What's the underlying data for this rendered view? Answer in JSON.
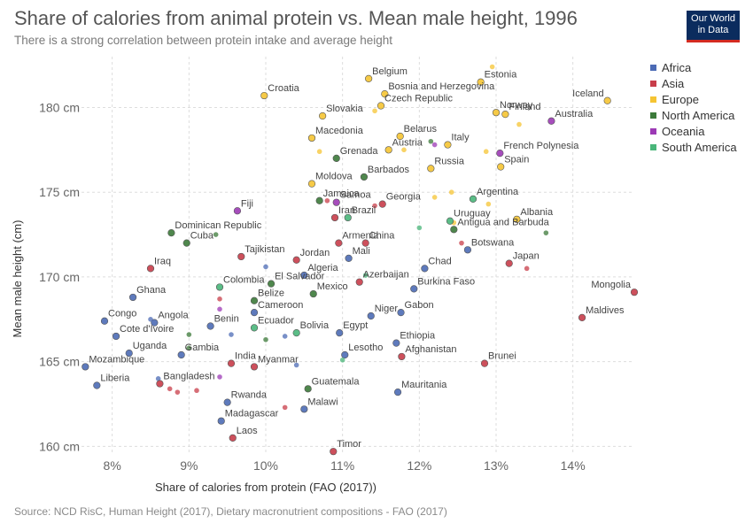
{
  "header": {
    "title": "Share of calories from animal protein vs. Mean male height, 1996",
    "subtitle": "There is a strong correlation between protein intake and average height",
    "logo_line1": "Our World",
    "logo_line2": "in Data"
  },
  "footer": {
    "source": "Source: NCD RisC, Human Height (2017), Dietary macronutrient compositions - FAO (2017)"
  },
  "colors": {
    "Africa": "#4c6bb5",
    "Asia": "#c83d4a",
    "Europe": "#f5c433",
    "North America": "#3c7a3a",
    "Oceania": "#9c3ab5",
    "South America": "#49b67a"
  },
  "chart_data": {
    "type": "scatter",
    "title": "Share of calories from animal protein vs. Mean male height, 1996",
    "xlabel": "Share of calories from protein (FAO (2017))",
    "ylabel": "Mean male height (cm)",
    "xlim": [
      7.6,
      14.8
    ],
    "ylim": [
      159.5,
      183
    ],
    "x_ticks": [
      8,
      9,
      10,
      11,
      12,
      13,
      14
    ],
    "x_tick_labels": [
      "8%",
      "9%",
      "10%",
      "11%",
      "12%",
      "13%",
      "14%"
    ],
    "y_ticks": [
      160,
      165,
      170,
      175,
      180
    ],
    "y_tick_labels": [
      "160 cm",
      "165 cm",
      "170 cm",
      "175 cm",
      "180 cm"
    ],
    "grid": true,
    "legend_position": "right",
    "legend": [
      "Africa",
      "Asia",
      "Europe",
      "North America",
      "Oceania",
      "South America"
    ],
    "series": [
      {
        "name": "Africa",
        "points": [
          {
            "x": 8.27,
            "y": 168.8,
            "label": "Ghana"
          },
          {
            "x": 7.9,
            "y": 167.4,
            "label": "Congo"
          },
          {
            "x": 8.55,
            "y": 167.3,
            "label": "Angola"
          },
          {
            "x": 8.05,
            "y": 166.5,
            "label": "Cote d'Ivoire"
          },
          {
            "x": 8.22,
            "y": 165.5,
            "label": "Uganda"
          },
          {
            "x": 7.65,
            "y": 164.7,
            "label": "Mozambique"
          },
          {
            "x": 7.8,
            "y": 163.6,
            "label": "Liberia"
          },
          {
            "x": 8.9,
            "y": 165.4,
            "label": "Gambia"
          },
          {
            "x": 9.28,
            "y": 167.1,
            "label": "Benin"
          },
          {
            "x": 9.85,
            "y": 167.9,
            "label": "Cameroon"
          },
          {
            "x": 9.5,
            "y": 162.6,
            "label": "Rwanda"
          },
          {
            "x": 9.42,
            "y": 161.5,
            "label": "Madagascar"
          },
          {
            "x": 10.5,
            "y": 162.2,
            "label": "Malawi"
          },
          {
            "x": 10.5,
            "y": 170.1,
            "label": "Algeria"
          },
          {
            "x": 11.08,
            "y": 171.1,
            "label": "Mali"
          },
          {
            "x": 10.96,
            "y": 166.7,
            "label": "Egypt"
          },
          {
            "x": 11.03,
            "y": 165.4,
            "label": "Lesotho"
          },
          {
            "x": 11.37,
            "y": 167.7,
            "label": "Niger"
          },
          {
            "x": 11.76,
            "y": 167.9,
            "label": "Gabon"
          },
          {
            "x": 11.7,
            "y": 166.1,
            "label": "Ethiopia"
          },
          {
            "x": 11.72,
            "y": 163.2,
            "label": "Mauritania"
          },
          {
            "x": 11.93,
            "y": 169.3,
            "label": "Burkina Faso"
          },
          {
            "x": 12.07,
            "y": 170.5,
            "label": "Chad"
          },
          {
            "x": 12.63,
            "y": 171.6,
            "label": "Botswana"
          },
          {
            "x": 8.5,
            "y": 167.5
          },
          {
            "x": 9.55,
            "y": 166.6
          },
          {
            "x": 10.25,
            "y": 166.5
          },
          {
            "x": 10.0,
            "y": 170.6
          },
          {
            "x": 8.6,
            "y": 164.0
          },
          {
            "x": 10.4,
            "y": 164.8
          }
        ]
      },
      {
        "name": "Asia",
        "points": [
          {
            "x": 8.5,
            "y": 170.5,
            "label": "Iraq"
          },
          {
            "x": 9.68,
            "y": 171.2,
            "label": "Tajikistan"
          },
          {
            "x": 10.4,
            "y": 171.0,
            "label": "Jordan"
          },
          {
            "x": 9.55,
            "y": 164.9,
            "label": "India"
          },
          {
            "x": 9.85,
            "y": 164.7,
            "label": "Myanmar"
          },
          {
            "x": 8.62,
            "y": 163.7,
            "label": "Bangladesh"
          },
          {
            "x": 9.57,
            "y": 160.5,
            "label": "Laos"
          },
          {
            "x": 10.88,
            "y": 159.7,
            "label": "Timor"
          },
          {
            "x": 10.9,
            "y": 173.5,
            "label": "Iran"
          },
          {
            "x": 10.95,
            "y": 172.0,
            "label": "Armenia"
          },
          {
            "x": 11.3,
            "y": 172.0,
            "label": "China"
          },
          {
            "x": 11.52,
            "y": 174.3,
            "label": "Georgia"
          },
          {
            "x": 11.22,
            "y": 169.7,
            "label": "Azerbaijan"
          },
          {
            "x": 11.77,
            "y": 165.3,
            "label": "Afghanistan"
          },
          {
            "x": 12.85,
            "y": 164.9,
            "label": "Brunei"
          },
          {
            "x": 13.17,
            "y": 170.8,
            "label": "Japan"
          },
          {
            "x": 14.12,
            "y": 167.6,
            "label": "Maldives"
          },
          {
            "x": 14.8,
            "y": 169.1,
            "label": "Mongolia"
          },
          {
            "x": 9.4,
            "y": 168.7
          },
          {
            "x": 10.8,
            "y": 174.5
          },
          {
            "x": 11.42,
            "y": 174.2
          },
          {
            "x": 12.55,
            "y": 172.0
          },
          {
            "x": 13.4,
            "y": 170.5
          },
          {
            "x": 8.75,
            "y": 163.4
          },
          {
            "x": 8.85,
            "y": 163.2
          },
          {
            "x": 9.1,
            "y": 163.3
          },
          {
            "x": 10.25,
            "y": 162.3
          }
        ]
      },
      {
        "name": "Europe",
        "points": [
          {
            "x": 9.98,
            "y": 180.7,
            "label": "Croatia"
          },
          {
            "x": 10.74,
            "y": 179.5,
            "label": "Slovakia"
          },
          {
            "x": 10.6,
            "y": 178.2,
            "label": "Macedonia"
          },
          {
            "x": 10.6,
            "y": 175.5,
            "label": "Moldova"
          },
          {
            "x": 11.34,
            "y": 181.7,
            "label": "Belgium"
          },
          {
            "x": 11.55,
            "y": 180.8,
            "label": "Bosnia and Herzegovina"
          },
          {
            "x": 11.5,
            "y": 180.1,
            "label": "Czech Republic"
          },
          {
            "x": 11.75,
            "y": 178.3,
            "label": "Belarus"
          },
          {
            "x": 11.6,
            "y": 177.5,
            "label": "Austria"
          },
          {
            "x": 12.37,
            "y": 177.8,
            "label": "Italy"
          },
          {
            "x": 12.15,
            "y": 176.4,
            "label": "Russia"
          },
          {
            "x": 12.8,
            "y": 181.5,
            "label": "Estonia"
          },
          {
            "x": 13.0,
            "y": 179.7,
            "label": "Norway"
          },
          {
            "x": 13.12,
            "y": 179.6,
            "label": "Finland"
          },
          {
            "x": 14.45,
            "y": 180.4,
            "label": "Iceland"
          },
          {
            "x": 13.06,
            "y": 176.5,
            "label": "Spain"
          },
          {
            "x": 13.27,
            "y": 173.4,
            "label": "Albania"
          },
          {
            "x": 12.95,
            "y": 182.4
          },
          {
            "x": 11.42,
            "y": 179.8
          },
          {
            "x": 11.8,
            "y": 177.5
          },
          {
            "x": 12.2,
            "y": 174.7
          },
          {
            "x": 12.42,
            "y": 175.0
          },
          {
            "x": 12.9,
            "y": 174.3
          },
          {
            "x": 12.45,
            "y": 173.2
          },
          {
            "x": 13.3,
            "y": 179.0
          },
          {
            "x": 10.7,
            "y": 177.4
          },
          {
            "x": 12.87,
            "y": 177.4
          }
        ]
      },
      {
        "name": "North America",
        "points": [
          {
            "x": 10.7,
            "y": 174.5,
            "label": "Jamaica"
          },
          {
            "x": 10.92,
            "y": 177.0,
            "label": "Grenada"
          },
          {
            "x": 11.28,
            "y": 175.9,
            "label": "Barbados"
          },
          {
            "x": 8.77,
            "y": 172.6,
            "label": "Dominican Republic"
          },
          {
            "x": 8.97,
            "y": 172.0,
            "label": "Cuba"
          },
          {
            "x": 9.85,
            "y": 168.6,
            "label": "Belize"
          },
          {
            "x": 10.07,
            "y": 169.6,
            "label": "El Salvador"
          },
          {
            "x": 10.62,
            "y": 169.0,
            "label": "Mexico"
          },
          {
            "x": 10.55,
            "y": 163.4,
            "label": "Guatemala"
          },
          {
            "x": 12.45,
            "y": 172.8,
            "label": "Antigua and Barbuda"
          },
          {
            "x": 12.15,
            "y": 178.0
          },
          {
            "x": 13.65,
            "y": 172.6
          },
          {
            "x": 9.0,
            "y": 166.6
          },
          {
            "x": 9.0,
            "y": 165.8
          },
          {
            "x": 9.35,
            "y": 172.5
          },
          {
            "x": 10.0,
            "y": 166.3
          }
        ]
      },
      {
        "name": "Oceania",
        "points": [
          {
            "x": 9.63,
            "y": 173.9,
            "label": "Fiji"
          },
          {
            "x": 10.92,
            "y": 174.4,
            "label": "Samoa"
          },
          {
            "x": 13.72,
            "y": 179.2,
            "label": "Australia"
          },
          {
            "x": 13.05,
            "y": 177.3,
            "label": "French Polynesia"
          },
          {
            "x": 12.2,
            "y": 177.8
          },
          {
            "x": 9.4,
            "y": 168.1
          },
          {
            "x": 9.4,
            "y": 164.1
          }
        ]
      },
      {
        "name": "South America",
        "points": [
          {
            "x": 11.07,
            "y": 173.5,
            "label": "Brazil"
          },
          {
            "x": 12.7,
            "y": 174.6,
            "label": "Argentina"
          },
          {
            "x": 12.4,
            "y": 173.3,
            "label": "Uruguay"
          },
          {
            "x": 9.4,
            "y": 169.4,
            "label": "Colombia"
          },
          {
            "x": 9.85,
            "y": 167.0,
            "label": "Ecuador"
          },
          {
            "x": 10.4,
            "y": 166.7,
            "label": "Bolivia"
          },
          {
            "x": 12.0,
            "y": 172.9
          },
          {
            "x": 11.3,
            "y": 170.1
          },
          {
            "x": 11.0,
            "y": 165.1
          }
        ]
      }
    ]
  }
}
